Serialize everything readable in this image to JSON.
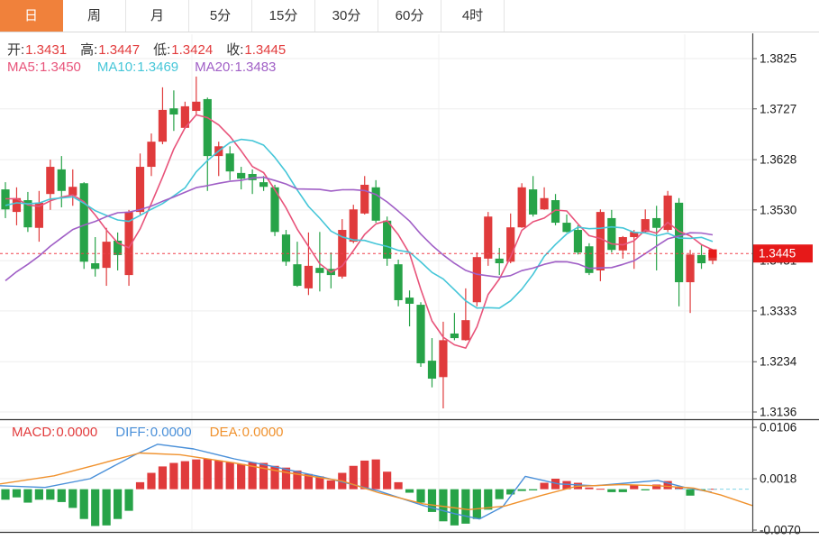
{
  "tabs": [
    {
      "name": "day",
      "label": "日",
      "active": true
    },
    {
      "name": "week",
      "label": "周",
      "active": false
    },
    {
      "name": "month",
      "label": "月",
      "active": false
    },
    {
      "name": "5min",
      "label": "5分",
      "active": false
    },
    {
      "name": "15min",
      "label": "15分",
      "active": false
    },
    {
      "name": "30min",
      "label": "30分",
      "active": false
    },
    {
      "name": "60min",
      "label": "60分",
      "active": false
    },
    {
      "name": "4hour",
      "label": "4时",
      "active": false
    }
  ],
  "ohlc": {
    "open_label": "开:",
    "open": "1.3431",
    "high_label": "高:",
    "high": "1.3447",
    "low_label": "低:",
    "low": "1.3424",
    "close_label": "收:",
    "close": "1.3445"
  },
  "ma_legend": [
    {
      "label": "MA5:",
      "value": "1.3450",
      "color": "#e8537a"
    },
    {
      "label": "MA10:",
      "value": "1.3469",
      "color": "#45c6d8"
    },
    {
      "label": "MA20:",
      "value": "1.3483",
      "color": "#a05fc6"
    }
  ],
  "macd_legend": [
    {
      "label": "MACD:",
      "value": "0.0000",
      "color": "#e23b3c"
    },
    {
      "label": "DIFF:",
      "value": "0.0000",
      "color": "#4a90d9"
    },
    {
      "label": "DEA:",
      "value": "0.0000",
      "color": "#f0922e"
    }
  ],
  "last_price_label": "1.3445",
  "colors": {
    "up": "#e03b3c",
    "down": "#27a348",
    "accent_tab": "#f0813b",
    "badge": "#e61919",
    "dotted_price_line": "#f1404b",
    "ma5": "#e8537a",
    "ma10": "#45c6d8",
    "ma20": "#a05fc6",
    "diff": "#4a90d9",
    "dea": "#f0922e",
    "grid": "#ededed",
    "axis": "#444444"
  },
  "chart_data": {
    "type": "candlestick",
    "title": "",
    "legend": [
      "MA5",
      "MA10",
      "MA20",
      "MACD",
      "DIFF",
      "DEA"
    ],
    "price_axis": [
      1.3825,
      1.3727,
      1.3628,
      1.353,
      1.3431,
      1.3333,
      1.3234,
      1.3136
    ],
    "macd_axis": [
      0.0106,
      0.0018,
      -0.007
    ],
    "last_price": 1.3445,
    "ma_periods": [
      5,
      10,
      20
    ],
    "candles": [
      [
        1.357,
        1.3584,
        1.3514,
        1.3531
      ],
      [
        1.3526,
        1.3574,
        1.35,
        1.3553
      ],
      [
        1.3549,
        1.3565,
        1.3487,
        1.3496
      ],
      [
        1.3495,
        1.3567,
        1.3468,
        1.3544
      ],
      [
        1.3561,
        1.3628,
        1.353,
        1.3614
      ],
      [
        1.3609,
        1.3635,
        1.3535,
        1.3567
      ],
      [
        1.3558,
        1.3609,
        1.3538,
        1.3575
      ],
      [
        1.3582,
        1.3584,
        1.3415,
        1.3429
      ],
      [
        1.3426,
        1.3477,
        1.34,
        1.3415
      ],
      [
        1.3417,
        1.3495,
        1.3382,
        1.3468
      ],
      [
        1.347,
        1.3486,
        1.3412,
        1.3442
      ],
      [
        1.3403,
        1.353,
        1.3382,
        1.3526
      ],
      [
        1.3526,
        1.364,
        1.3521,
        1.3614
      ],
      [
        1.3614,
        1.3679,
        1.3596,
        1.3663
      ],
      [
        1.3663,
        1.3769,
        1.3658,
        1.3725
      ],
      [
        1.3728,
        1.3763,
        1.3684,
        1.3716
      ],
      [
        1.369,
        1.3741,
        1.3688,
        1.3732
      ],
      [
        1.3723,
        1.379,
        1.3714,
        1.3741
      ],
      [
        1.3746,
        1.3749,
        1.3567,
        1.3635
      ],
      [
        1.3635,
        1.3663,
        1.3596,
        1.3654
      ],
      [
        1.364,
        1.3654,
        1.3588,
        1.3605
      ],
      [
        1.3602,
        1.3614,
        1.357,
        1.3591
      ],
      [
        1.36,
        1.3609,
        1.3561,
        1.3588
      ],
      [
        1.3584,
        1.3596,
        1.3567,
        1.3575
      ],
      [
        1.3574,
        1.3579,
        1.3479,
        1.3487
      ],
      [
        1.3482,
        1.3491,
        1.3421,
        1.3429
      ],
      [
        1.3424,
        1.3468,
        1.338,
        1.3382
      ],
      [
        1.3377,
        1.3486,
        1.3364,
        1.3421
      ],
      [
        1.3417,
        1.3487,
        1.3371,
        1.3407
      ],
      [
        1.3415,
        1.3447,
        1.3377,
        1.3403
      ],
      [
        1.34,
        1.3512,
        1.3396,
        1.3491
      ],
      [
        1.3468,
        1.354,
        1.3465,
        1.3531
      ],
      [
        1.3523,
        1.3596,
        1.3521,
        1.3579
      ],
      [
        1.3574,
        1.3588,
        1.3505,
        1.3509
      ],
      [
        1.3509,
        1.3517,
        1.3421,
        1.3435
      ],
      [
        1.3424,
        1.3433,
        1.3342,
        1.3354
      ],
      [
        1.3359,
        1.3373,
        1.3303,
        1.3347
      ],
      [
        1.3345,
        1.335,
        1.3224,
        1.3231
      ],
      [
        1.3236,
        1.328,
        1.3184,
        1.3201
      ],
      [
        1.3204,
        1.3312,
        1.3143,
        1.3276
      ],
      [
        1.3289,
        1.3329,
        1.3276,
        1.328
      ],
      [
        1.3276,
        1.3377,
        1.3275,
        1.3315
      ],
      [
        1.335,
        1.3447,
        1.3342,
        1.3438
      ],
      [
        1.3435,
        1.3526,
        1.3421,
        1.3517
      ],
      [
        1.3435,
        1.3456,
        1.3403,
        1.3426
      ],
      [
        1.3429,
        1.3523,
        1.3426,
        1.3496
      ],
      [
        1.3496,
        1.3582,
        1.3495,
        1.3574
      ],
      [
        1.357,
        1.3596,
        1.3517,
        1.3521
      ],
      [
        1.3531,
        1.3574,
        1.353,
        1.3553
      ],
      [
        1.3549,
        1.3561,
        1.35,
        1.3505
      ],
      [
        1.3505,
        1.3521,
        1.3486,
        1.3487
      ],
      [
        1.3491,
        1.35,
        1.3443,
        1.3447
      ],
      [
        1.3459,
        1.3465,
        1.3403,
        1.3407
      ],
      [
        1.3412,
        1.3531,
        1.3391,
        1.3526
      ],
      [
        1.3514,
        1.353,
        1.3447,
        1.3452
      ],
      [
        1.3451,
        1.3479,
        1.3435,
        1.3477
      ],
      [
        1.3477,
        1.3491,
        1.3415,
        1.3487
      ],
      [
        1.3487,
        1.3531,
        1.3486,
        1.3512
      ],
      [
        1.3514,
        1.3538,
        1.3412,
        1.3495
      ],
      [
        1.3491,
        1.3567,
        1.3487,
        1.3558
      ],
      [
        1.3544,
        1.3553,
        1.3342,
        1.3389
      ],
      [
        1.3389,
        1.3452,
        1.3329,
        1.3443
      ],
      [
        1.3442,
        1.3461,
        1.3415,
        1.3426
      ],
      [
        1.3431,
        1.3447,
        1.3424,
        1.3445
      ]
    ],
    "macd_hist": [
      -0.0018,
      -0.0014,
      -0.0023,
      -0.0018,
      -0.0018,
      -0.0022,
      -0.0032,
      -0.0051,
      -0.0063,
      -0.0062,
      -0.0051,
      -0.0037,
      0.0012,
      0.0028,
      0.0039,
      0.0045,
      0.0048,
      0.0051,
      0.0052,
      0.0049,
      0.0046,
      0.0043,
      0.0046,
      0.0045,
      0.004,
      0.0037,
      0.0032,
      0.0026,
      0.0022,
      0.0015,
      0.0028,
      0.004,
      0.0049,
      0.0051,
      0.003,
      0.0012,
      -0.0006,
      -0.0023,
      -0.0039,
      -0.0055,
      -0.0062,
      -0.0059,
      -0.0051,
      -0.0035,
      -0.0017,
      -0.0009,
      -0.0003,
      -0.0002,
      0.0011,
      0.0018,
      0.0014,
      0.0011,
      0.0003,
      0.0,
      -0.0005,
      -0.0005,
      0.0008,
      -0.0002,
      0.0008,
      0.0014,
      0.0003,
      -0.0011,
      -0.0002,
      0.0
    ],
    "diff_line": [
      [
        0,
        0.0006
      ],
      [
        50,
        0.0003
      ],
      [
        100,
        0.0018
      ],
      [
        150,
        0.0059
      ],
      [
        175,
        0.0077
      ],
      [
        215,
        0.0069
      ],
      [
        260,
        0.0052
      ],
      [
        300,
        0.004
      ],
      [
        360,
        0.002
      ],
      [
        420,
        -0.0003
      ],
      [
        470,
        -0.0028
      ],
      [
        505,
        -0.0042
      ],
      [
        532,
        -0.0051
      ],
      [
        558,
        -0.003
      ],
      [
        583,
        0.0022
      ],
      [
        620,
        0.0009
      ],
      [
        660,
        0.0006
      ],
      [
        700,
        0.0011
      ],
      [
        730,
        0.0015
      ],
      [
        760,
        0.0003
      ],
      [
        790,
        -0.0005
      ]
    ],
    "dea_line": [
      [
        0,
        0.0009
      ],
      [
        60,
        0.0023
      ],
      [
        110,
        0.0043
      ],
      [
        155,
        0.0062
      ],
      [
        200,
        0.0059
      ],
      [
        260,
        0.0045
      ],
      [
        320,
        0.0028
      ],
      [
        380,
        0.0014
      ],
      [
        420,
        -0.0006
      ],
      [
        470,
        -0.0025
      ],
      [
        520,
        -0.0035
      ],
      [
        560,
        -0.0029
      ],
      [
        600,
        -0.0011
      ],
      [
        640,
        0.0005
      ],
      [
        690,
        0.0008
      ],
      [
        730,
        0.0006
      ],
      [
        770,
        0.0002
      ],
      [
        800,
        -0.001
      ],
      [
        835,
        -0.0028
      ]
    ]
  }
}
